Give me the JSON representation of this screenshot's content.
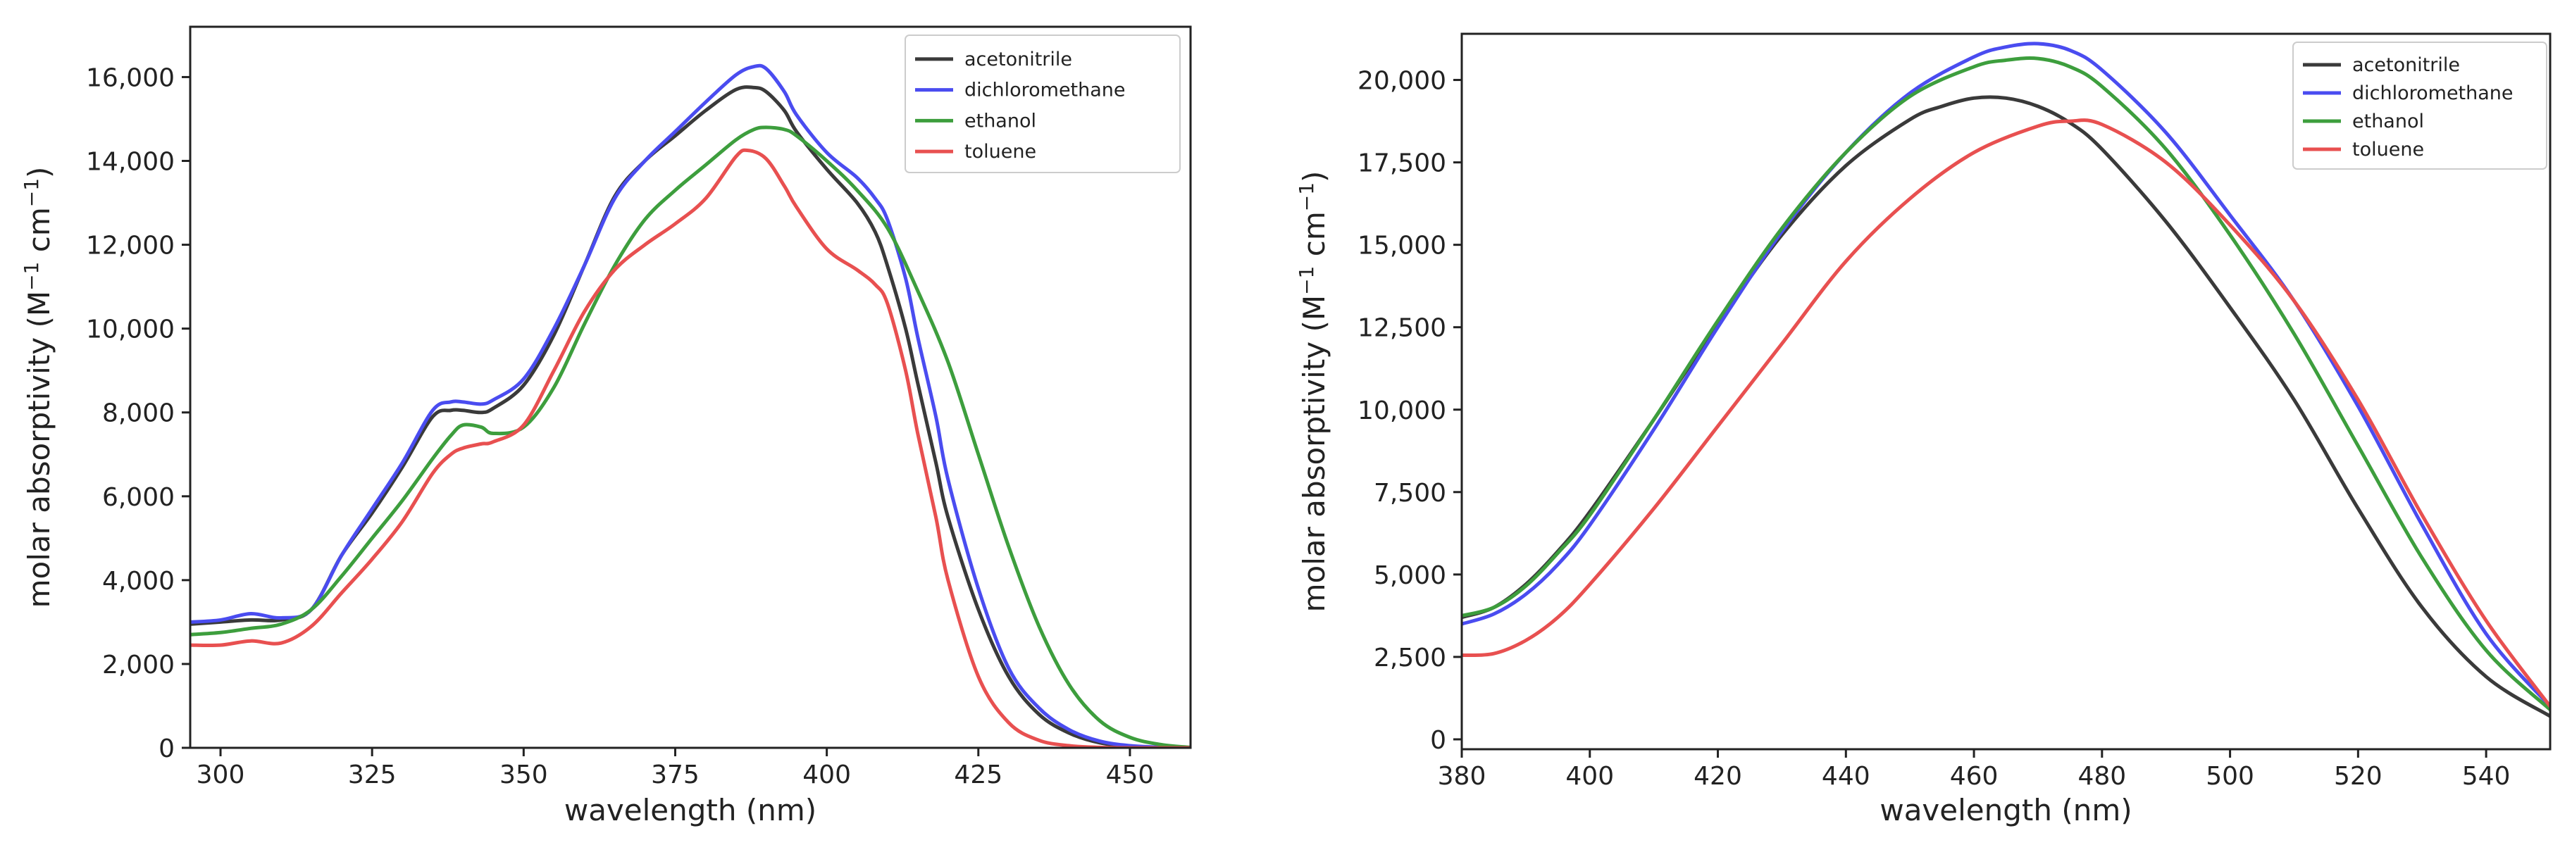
{
  "chart_data": [
    {
      "type": "line",
      "title": "",
      "xlabel": "wavelength (nm)",
      "ylabel_main": "molar absorptivity (M",
      "ylabel_sup1": "−1",
      "ylabel_mid": " cm",
      "ylabel_sup2": "−1",
      "ylabel_end": ")",
      "xlim": [
        295,
        460
      ],
      "ylim": [
        0,
        17200
      ],
      "xticks": [
        300,
        325,
        350,
        375,
        400,
        425,
        450
      ],
      "xtick_labels": [
        "300",
        "325",
        "350",
        "375",
        "400",
        "425",
        "450"
      ],
      "yticks": [
        0,
        2000,
        4000,
        6000,
        8000,
        10000,
        12000,
        14000,
        16000
      ],
      "ytick_labels": [
        "0",
        "2,000",
        "4,000",
        "6,000",
        "8,000",
        "10,000",
        "12,000",
        "14,000",
        "16,000"
      ],
      "legend_position": "top-right",
      "series": [
        {
          "name": "acetonitrile",
          "color": "#3a3a3a",
          "x": [
            295,
            300,
            305,
            310,
            315,
            320,
            325,
            330,
            335,
            338,
            340,
            343,
            345,
            350,
            355,
            360,
            365,
            370,
            375,
            380,
            385,
            388,
            390,
            393,
            395,
            400,
            405,
            408,
            410,
            413,
            415,
            418,
            420,
            425,
            430,
            435,
            440,
            445,
            450,
            455,
            460
          ],
          "y": [
            2950,
            3000,
            3050,
            3050,
            3300,
            4600,
            5600,
            6700,
            7900,
            8050,
            8050,
            8000,
            8100,
            8650,
            9850,
            11500,
            13150,
            14000,
            14600,
            15200,
            15700,
            15750,
            15650,
            15200,
            14700,
            13800,
            13000,
            12300,
            11500,
            10000,
            8700,
            6800,
            5500,
            3300,
            1700,
            800,
            350,
            120,
            40,
            10,
            0
          ]
        },
        {
          "name": "dichloromethane",
          "color": "#4a4cf0",
          "x": [
            295,
            300,
            305,
            310,
            315,
            320,
            325,
            330,
            335,
            338,
            340,
            343,
            345,
            350,
            355,
            360,
            365,
            370,
            375,
            380,
            385,
            388,
            390,
            393,
            395,
            400,
            405,
            408,
            410,
            413,
            415,
            418,
            420,
            425,
            430,
            435,
            440,
            445,
            450,
            455,
            460
          ],
          "y": [
            3000,
            3050,
            3200,
            3100,
            3300,
            4600,
            5700,
            6800,
            8050,
            8250,
            8250,
            8200,
            8300,
            8800,
            10000,
            11500,
            13100,
            14000,
            14700,
            15400,
            16050,
            16250,
            16200,
            15650,
            15100,
            14200,
            13600,
            13100,
            12600,
            11200,
            9800,
            7900,
            6400,
            3800,
            1900,
            950,
            430,
            160,
            50,
            15,
            0
          ]
        },
        {
          "name": "ethanol",
          "color": "#3d9e3d",
          "x": [
            295,
            300,
            305,
            310,
            315,
            320,
            325,
            330,
            335,
            338,
            340,
            343,
            345,
            350,
            355,
            360,
            365,
            370,
            375,
            380,
            385,
            388,
            390,
            393,
            395,
            400,
            405,
            410,
            415,
            420,
            425,
            430,
            435,
            440,
            445,
            450,
            455,
            460
          ],
          "y": [
            2700,
            2750,
            2850,
            2950,
            3300,
            4100,
            5000,
            5900,
            6900,
            7450,
            7700,
            7650,
            7500,
            7650,
            8600,
            10100,
            11500,
            12600,
            13300,
            13900,
            14500,
            14750,
            14800,
            14750,
            14600,
            14000,
            13300,
            12400,
            10900,
            9200,
            7000,
            4800,
            2900,
            1500,
            650,
            250,
            80,
            10
          ]
        },
        {
          "name": "toluene",
          "color": "#e85050",
          "x": [
            295,
            300,
            305,
            310,
            315,
            320,
            325,
            330,
            335,
            338,
            340,
            343,
            345,
            350,
            355,
            360,
            365,
            370,
            375,
            380,
            385,
            387,
            390,
            393,
            395,
            400,
            405,
            408,
            410,
            413,
            415,
            418,
            420,
            425,
            430,
            435,
            440,
            445,
            450,
            455,
            460
          ],
          "y": [
            2450,
            2450,
            2550,
            2500,
            2900,
            3700,
            4500,
            5400,
            6550,
            7000,
            7150,
            7250,
            7300,
            7700,
            9000,
            10400,
            11400,
            12000,
            12500,
            13100,
            14100,
            14250,
            14050,
            13400,
            12900,
            11900,
            11400,
            11050,
            10600,
            9000,
            7500,
            5500,
            4000,
            1700,
            600,
            180,
            50,
            10,
            0,
            0,
            0
          ]
        }
      ]
    },
    {
      "type": "line",
      "title": "",
      "xlabel": "wavelength (nm)",
      "ylabel_main": "molar absorptivity (M",
      "ylabel_sup1": "−1",
      "ylabel_mid": " cm",
      "ylabel_sup2": "−1",
      "ylabel_end": ")",
      "xlim": [
        380,
        550
      ],
      "ylim": [
        -300,
        21400
      ],
      "xticks": [
        380,
        400,
        420,
        440,
        460,
        480,
        500,
        520,
        540
      ],
      "xtick_labels": [
        "380",
        "400",
        "420",
        "440",
        "460",
        "480",
        "500",
        "520",
        "540"
      ],
      "yticks": [
        0,
        2500,
        5000,
        7500,
        10000,
        12500,
        15000,
        17500,
        20000
      ],
      "ytick_labels": [
        "0",
        "2,500",
        "5,000",
        "7,500",
        "10,000",
        "12,500",
        "15,000",
        "17,500",
        "20,000"
      ],
      "legend_position": "top-right",
      "series": [
        {
          "name": "acetonitrile",
          "color": "#3a3a3a",
          "x": [
            380,
            385,
            390,
            395,
            400,
            410,
            420,
            430,
            440,
            450,
            455,
            460,
            465,
            470,
            475,
            480,
            490,
            500,
            510,
            520,
            530,
            540,
            550
          ],
          "y": [
            3700,
            4000,
            4700,
            5700,
            6900,
            9700,
            12600,
            15300,
            17400,
            18800,
            19200,
            19450,
            19450,
            19200,
            18700,
            17900,
            15700,
            13100,
            10300,
            7000,
            4000,
            1900,
            700
          ]
        },
        {
          "name": "dichloromethane",
          "color": "#4a4cf0",
          "x": [
            380,
            385,
            390,
            395,
            400,
            410,
            420,
            430,
            440,
            450,
            460,
            465,
            470,
            475,
            480,
            490,
            500,
            510,
            520,
            530,
            540,
            550
          ],
          "y": [
            3500,
            3800,
            4400,
            5300,
            6500,
            9400,
            12500,
            15400,
            17800,
            19600,
            20700,
            21000,
            21100,
            20900,
            20300,
            18400,
            15900,
            13300,
            10100,
            6500,
            3200,
            1000
          ]
        },
        {
          "name": "ethanol",
          "color": "#3d9e3d",
          "x": [
            380,
            385,
            390,
            395,
            400,
            410,
            420,
            430,
            440,
            450,
            460,
            465,
            470,
            475,
            480,
            490,
            500,
            510,
            520,
            530,
            540,
            550
          ],
          "y": [
            3750,
            4000,
            4650,
            5650,
            6800,
            9700,
            12700,
            15500,
            17800,
            19500,
            20400,
            20600,
            20650,
            20400,
            19800,
            17900,
            15300,
            12300,
            8900,
            5500,
            2700,
            900
          ]
        },
        {
          "name": "toluene",
          "color": "#e85050",
          "x": [
            380,
            385,
            390,
            395,
            400,
            410,
            420,
            430,
            440,
            450,
            460,
            470,
            475,
            480,
            490,
            500,
            510,
            520,
            530,
            540,
            550
          ],
          "y": [
            2550,
            2600,
            3000,
            3700,
            4700,
            7000,
            9500,
            12000,
            14500,
            16400,
            17800,
            18600,
            18750,
            18650,
            17500,
            15600,
            13300,
            10300,
            6800,
            3600,
            1000
          ]
        }
      ]
    }
  ]
}
